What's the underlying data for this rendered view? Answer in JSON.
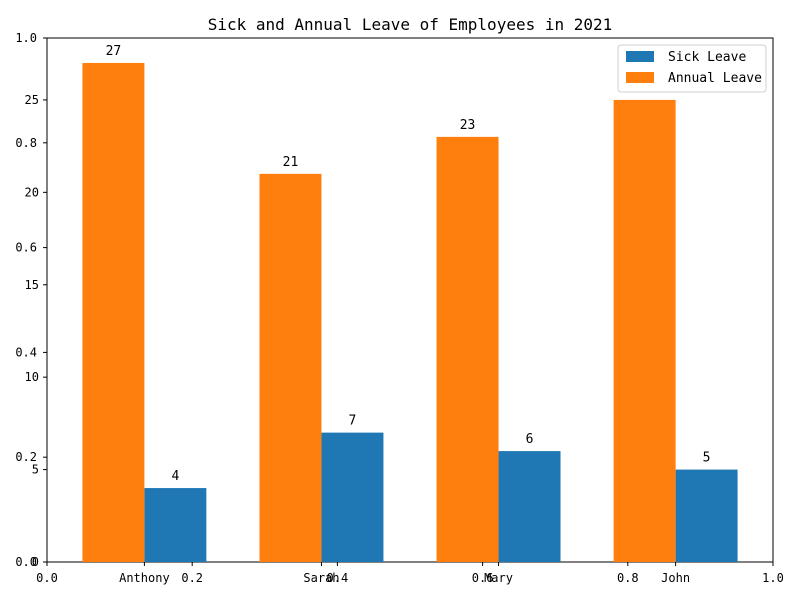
{
  "chart_data": {
    "type": "bar",
    "title": "Sick and Annual Leave of Employees in 2021",
    "categories": [
      "Anthony",
      "Sarah",
      "Mary",
      "John"
    ],
    "series": [
      {
        "name": "Sick Leave",
        "values": [
          4,
          7,
          6,
          5
        ],
        "color": "#1f77b4"
      },
      {
        "name": "Annual Leave",
        "values": [
          27,
          21,
          23,
          25
        ],
        "color": "#ff7f0e"
      }
    ],
    "ylim": [
      0,
      28.35
    ],
    "yticks": [
      0,
      5,
      10,
      15,
      20,
      25
    ],
    "overlay_axis_ticks": [
      "0.0",
      "0.2",
      "0.4",
      "0.6",
      "0.8",
      "1.0"
    ],
    "legend_position": "top-right",
    "grid": false
  }
}
